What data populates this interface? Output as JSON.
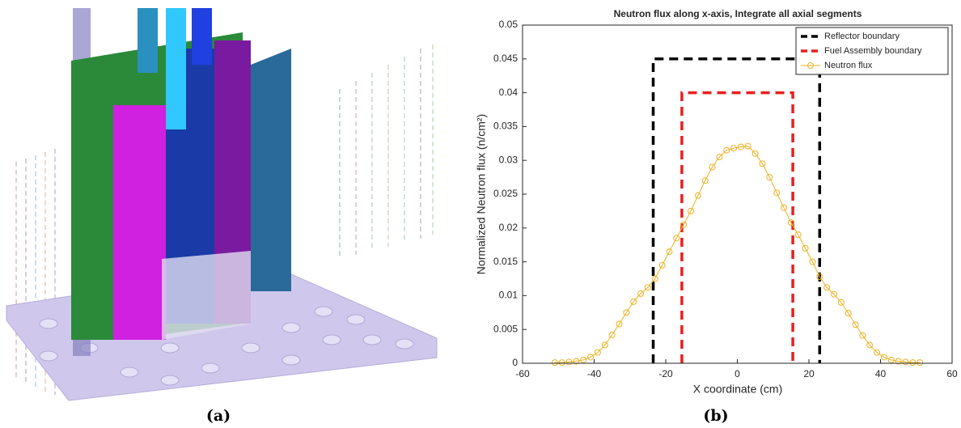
{
  "panel_labels": [
    "(a)",
    "(b)"
  ],
  "chart_data": {
    "type": "line",
    "title": "Neutron flux along x-axis, Integrate all axial segments",
    "xlabel": "X coordinate (cm)",
    "ylabel": "Normalized Neutron flux (n/cm²)",
    "xlim": [
      -60,
      60
    ],
    "xticks": [
      -60,
      -40,
      -20,
      0,
      20,
      40,
      60
    ],
    "ylim": [
      0,
      0.05
    ],
    "yticks": [
      0,
      0.005,
      0.01,
      0.015,
      0.02,
      0.025,
      0.03,
      0.035,
      0.04,
      0.045,
      0.05
    ],
    "legend": "upper right",
    "series": [
      {
        "name": "Reflector boundary",
        "color": "#000000",
        "linestyle": "dashed",
        "marker": "none",
        "x": [
          -23.5,
          -23.5,
          23,
          23
        ],
        "values": [
          0,
          0.045,
          0.045,
          0
        ]
      },
      {
        "name": "Fuel Assembly boundary",
        "color": "#e8201f",
        "linestyle": "dashed",
        "marker": "none",
        "x": [
          -15.5,
          -15.5,
          15.5,
          15.5
        ],
        "values": [
          0,
          0.04,
          0.04,
          0
        ]
      },
      {
        "name": "Neutron flux",
        "color": "#edb120",
        "linestyle": "solid",
        "marker": "circle",
        "x": [
          -51,
          -49,
          -47,
          -45,
          -43,
          -41,
          -39,
          -37,
          -35,
          -33,
          -31,
          -29,
          -27,
          -25,
          -23,
          -21,
          -19,
          -17,
          -15,
          -13,
          -11,
          -9,
          -7,
          -5,
          -3,
          -1,
          1,
          3,
          5,
          7,
          9,
          11,
          13,
          15,
          17,
          19,
          21,
          23,
          25,
          27,
          29,
          31,
          33,
          35,
          37,
          39,
          41,
          43,
          45,
          47,
          49,
          51
        ],
        "values": [
          0.0001,
          0.0001,
          0.0002,
          0.0003,
          0.0005,
          0.0009,
          0.0016,
          0.0027,
          0.0042,
          0.0058,
          0.0075,
          0.0091,
          0.0103,
          0.0112,
          0.0125,
          0.0145,
          0.0165,
          0.0185,
          0.0205,
          0.0225,
          0.0248,
          0.027,
          0.029,
          0.0305,
          0.0315,
          0.0318,
          0.032,
          0.0321,
          0.031,
          0.0295,
          0.0275,
          0.0252,
          0.023,
          0.0208,
          0.019,
          0.017,
          0.015,
          0.0128,
          0.0112,
          0.0102,
          0.009,
          0.0074,
          0.0057,
          0.0041,
          0.0027,
          0.0016,
          0.0009,
          0.0005,
          0.0003,
          0.0002,
          0.0001,
          0.0001
        ]
      }
    ]
  }
}
